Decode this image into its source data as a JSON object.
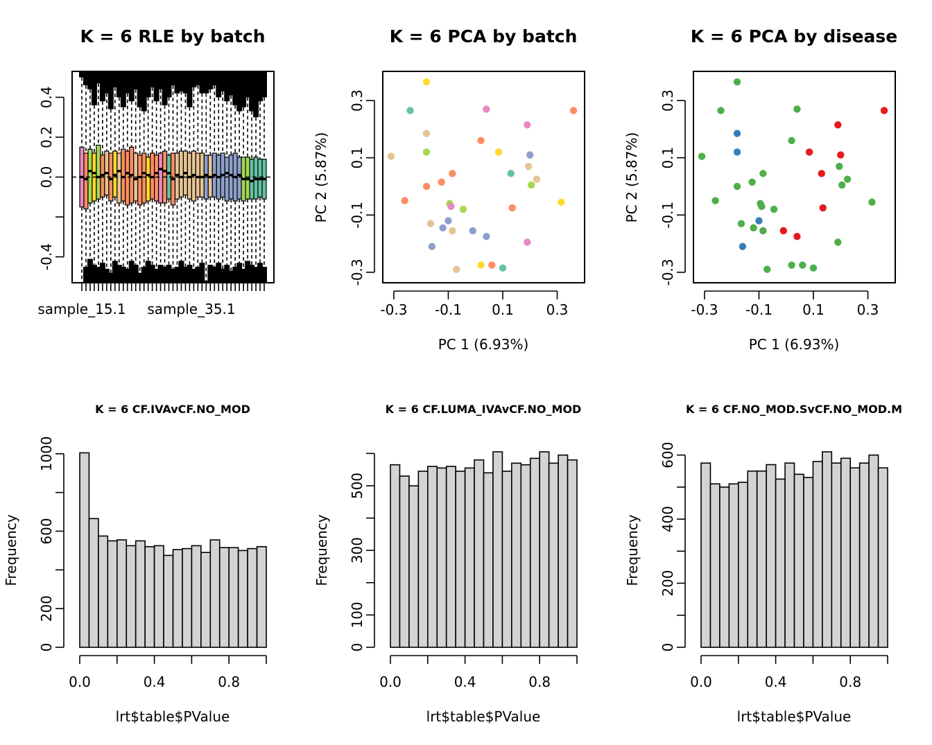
{
  "colors": {
    "bar_fill": "#d3d3d3",
    "disease_blue": "#377eb8",
    "disease_green": "#4daf4a",
    "disease_red": "#e41a1c"
  },
  "chart_data": [
    {
      "type": "boxplot",
      "title": "K = 6 RLE by batch",
      "xlabel": "",
      "ylabel": "",
      "ylim": [
        -0.53,
        0.53
      ],
      "yticks": [
        0.4,
        0.2,
        0.0,
        -0.4
      ],
      "x_labels": [
        "sample_15.1",
        "sample_35.1"
      ],
      "n_boxes": 45,
      "grid": false,
      "legend": "none"
    },
    {
      "type": "scatter",
      "title": "K = 6 PCA by batch",
      "xlabel": "PC 1 (6.93%)",
      "ylabel": "PC 2 (5.87%)",
      "xlim": [
        -0.31,
        0.37
      ],
      "ylim": [
        -0.31,
        0.38
      ],
      "xticks": [
        -0.3,
        -0.1,
        0.1,
        0.3
      ],
      "yticks": [
        0.3,
        0.1,
        -0.1,
        -0.3
      ],
      "grid": false,
      "legend": "none",
      "points": [
        {
          "x": -0.18,
          "y": 0.365,
          "color": "#ffd92f"
        },
        {
          "x": -0.24,
          "y": 0.265,
          "color": "#66c2a5"
        },
        {
          "x": 0.04,
          "y": 0.27,
          "color": "#e78ac3"
        },
        {
          "x": 0.36,
          "y": 0.265,
          "color": "#fc8d62"
        },
        {
          "x": 0.19,
          "y": 0.215,
          "color": "#e78ac3"
        },
        {
          "x": -0.18,
          "y": 0.185,
          "color": "#e5c494"
        },
        {
          "x": 0.02,
          "y": 0.16,
          "color": "#fc8d62"
        },
        {
          "x": -0.18,
          "y": 0.12,
          "color": "#a6d854"
        },
        {
          "x": 0.085,
          "y": 0.12,
          "color": "#ffd92f"
        },
        {
          "x": 0.2,
          "y": 0.11,
          "color": "#8da0cb"
        },
        {
          "x": -0.31,
          "y": 0.105,
          "color": "#e5c494"
        },
        {
          "x": 0.195,
          "y": 0.07,
          "color": "#e5c494"
        },
        {
          "x": -0.085,
          "y": 0.045,
          "color": "#fc8d62"
        },
        {
          "x": 0.13,
          "y": 0.045,
          "color": "#66c2a5"
        },
        {
          "x": 0.225,
          "y": 0.025,
          "color": "#e5c494"
        },
        {
          "x": -0.125,
          "y": 0.015,
          "color": "#fc8d62"
        },
        {
          "x": -0.18,
          "y": 0.0,
          "color": "#fc8d62"
        },
        {
          "x": 0.205,
          "y": 0.005,
          "color": "#a6d854"
        },
        {
          "x": -0.26,
          "y": -0.05,
          "color": "#fc8d62"
        },
        {
          "x": 0.315,
          "y": -0.055,
          "color": "#ffd92f"
        },
        {
          "x": -0.095,
          "y": -0.06,
          "color": "#a6d854"
        },
        {
          "x": -0.09,
          "y": -0.07,
          "color": "#e78ac3"
        },
        {
          "x": 0.135,
          "y": -0.075,
          "color": "#fc8d62"
        },
        {
          "x": -0.045,
          "y": -0.08,
          "color": "#a6d854"
        },
        {
          "x": -0.1,
          "y": -0.12,
          "color": "#8da0cb"
        },
        {
          "x": -0.165,
          "y": -0.13,
          "color": "#e5c494"
        },
        {
          "x": -0.12,
          "y": -0.145,
          "color": "#8da0cb"
        },
        {
          "x": -0.085,
          "y": -0.155,
          "color": "#e5c494"
        },
        {
          "x": -0.01,
          "y": -0.155,
          "color": "#8da0cb"
        },
        {
          "x": 0.04,
          "y": -0.175,
          "color": "#8da0cb"
        },
        {
          "x": 0.19,
          "y": -0.195,
          "color": "#e78ac3"
        },
        {
          "x": -0.16,
          "y": -0.21,
          "color": "#8da0cb"
        },
        {
          "x": 0.02,
          "y": -0.275,
          "color": "#ffd92f"
        },
        {
          "x": 0.06,
          "y": -0.275,
          "color": "#fc8d62"
        },
        {
          "x": 0.1,
          "y": -0.285,
          "color": "#66c2a5"
        },
        {
          "x": -0.07,
          "y": -0.29,
          "color": "#e5c494"
        }
      ]
    },
    {
      "type": "scatter",
      "title": "K = 6 PCA by disease",
      "xlabel": "PC 1 (6.93%)",
      "ylabel": "PC 2 (5.87%)",
      "xlim": [
        -0.31,
        0.37
      ],
      "ylim": [
        -0.31,
        0.38
      ],
      "xticks": [
        -0.3,
        -0.1,
        0.1,
        0.3
      ],
      "yticks": [
        0.3,
        0.1,
        -0.1,
        -0.3
      ],
      "grid": false,
      "legend": "none",
      "points": [
        {
          "x": -0.18,
          "y": 0.365,
          "color": "#4daf4a"
        },
        {
          "x": -0.24,
          "y": 0.265,
          "color": "#4daf4a"
        },
        {
          "x": 0.04,
          "y": 0.27,
          "color": "#4daf4a"
        },
        {
          "x": 0.36,
          "y": 0.265,
          "color": "#e41a1c"
        },
        {
          "x": 0.19,
          "y": 0.215,
          "color": "#e41a1c"
        },
        {
          "x": -0.18,
          "y": 0.185,
          "color": "#377eb8"
        },
        {
          "x": 0.02,
          "y": 0.16,
          "color": "#4daf4a"
        },
        {
          "x": -0.18,
          "y": 0.12,
          "color": "#377eb8"
        },
        {
          "x": 0.085,
          "y": 0.12,
          "color": "#e41a1c"
        },
        {
          "x": 0.2,
          "y": 0.11,
          "color": "#e41a1c"
        },
        {
          "x": -0.31,
          "y": 0.105,
          "color": "#4daf4a"
        },
        {
          "x": 0.195,
          "y": 0.07,
          "color": "#4daf4a"
        },
        {
          "x": -0.085,
          "y": 0.045,
          "color": "#4daf4a"
        },
        {
          "x": 0.13,
          "y": 0.045,
          "color": "#e41a1c"
        },
        {
          "x": 0.225,
          "y": 0.025,
          "color": "#4daf4a"
        },
        {
          "x": -0.125,
          "y": 0.015,
          "color": "#4daf4a"
        },
        {
          "x": -0.18,
          "y": 0.0,
          "color": "#4daf4a"
        },
        {
          "x": 0.205,
          "y": 0.005,
          "color": "#4daf4a"
        },
        {
          "x": -0.26,
          "y": -0.05,
          "color": "#4daf4a"
        },
        {
          "x": 0.315,
          "y": -0.055,
          "color": "#4daf4a"
        },
        {
          "x": -0.095,
          "y": -0.06,
          "color": "#4daf4a"
        },
        {
          "x": -0.09,
          "y": -0.07,
          "color": "#4daf4a"
        },
        {
          "x": 0.135,
          "y": -0.075,
          "color": "#e41a1c"
        },
        {
          "x": -0.045,
          "y": -0.08,
          "color": "#4daf4a"
        },
        {
          "x": -0.1,
          "y": -0.12,
          "color": "#377eb8"
        },
        {
          "x": -0.165,
          "y": -0.13,
          "color": "#4daf4a"
        },
        {
          "x": -0.12,
          "y": -0.145,
          "color": "#4daf4a"
        },
        {
          "x": -0.085,
          "y": -0.155,
          "color": "#4daf4a"
        },
        {
          "x": -0.01,
          "y": -0.155,
          "color": "#e41a1c"
        },
        {
          "x": 0.04,
          "y": -0.175,
          "color": "#e41a1c"
        },
        {
          "x": 0.19,
          "y": -0.195,
          "color": "#4daf4a"
        },
        {
          "x": -0.16,
          "y": -0.21,
          "color": "#377eb8"
        },
        {
          "x": 0.02,
          "y": -0.275,
          "color": "#4daf4a"
        },
        {
          "x": 0.06,
          "y": -0.275,
          "color": "#4daf4a"
        },
        {
          "x": 0.1,
          "y": -0.285,
          "color": "#4daf4a"
        },
        {
          "x": -0.07,
          "y": -0.29,
          "color": "#4daf4a"
        }
      ]
    },
    {
      "type": "bar",
      "title": "K = 6 CF.IVAvCF.NO_MOD",
      "xlabel": "lrt$table$PValue",
      "ylabel": "Frequency",
      "xlim": [
        0,
        1
      ],
      "ylim": [
        0,
        1010
      ],
      "xticks": [
        0.0,
        0.4,
        0.8
      ],
      "yticks": [
        0,
        200,
        600,
        1000
      ],
      "yticks_minor": [
        400,
        800
      ],
      "bin_width": 0.05,
      "values": [
        1005,
        665,
        575,
        550,
        555,
        525,
        550,
        520,
        525,
        475,
        505,
        510,
        525,
        490,
        555,
        515,
        515,
        500,
        510,
        520
      ],
      "grid": false,
      "legend": "none"
    },
    {
      "type": "bar",
      "title": "K = 6 CF.LUMA_IVAvCF.NO_MOD",
      "xlabel": "lrt$table$PValue",
      "ylabel": "Frequency",
      "xlim": [
        0,
        1
      ],
      "ylim": [
        0,
        605
      ],
      "xticks": [
        0.0,
        0.4,
        0.8
      ],
      "yticks": [
        0,
        100,
        300,
        500
      ],
      "yticks_minor": [
        200,
        400,
        600
      ],
      "bin_width": 0.05,
      "values": [
        565,
        530,
        500,
        545,
        560,
        555,
        560,
        545,
        555,
        580,
        540,
        605,
        545,
        570,
        565,
        585,
        605,
        570,
        595,
        580
      ],
      "grid": false,
      "legend": "none"
    },
    {
      "type": "bar",
      "title": "K = 6 CF.NO_MOD.SvCF.NO_MOD.M",
      "xlabel": "lrt$table$PValue",
      "ylabel": "Frequency",
      "xlim": [
        0,
        1
      ],
      "ylim": [
        0,
        610
      ],
      "xticks": [
        0.0,
        0.4,
        0.8
      ],
      "yticks": [
        0,
        200,
        400,
        600
      ],
      "yticks_minor": [
        100,
        300,
        500
      ],
      "bin_width": 0.05,
      "values": [
        575,
        510,
        500,
        510,
        515,
        550,
        550,
        570,
        525,
        575,
        540,
        530,
        580,
        610,
        575,
        590,
        560,
        575,
        600,
        560
      ],
      "grid": false,
      "legend": "none"
    }
  ]
}
